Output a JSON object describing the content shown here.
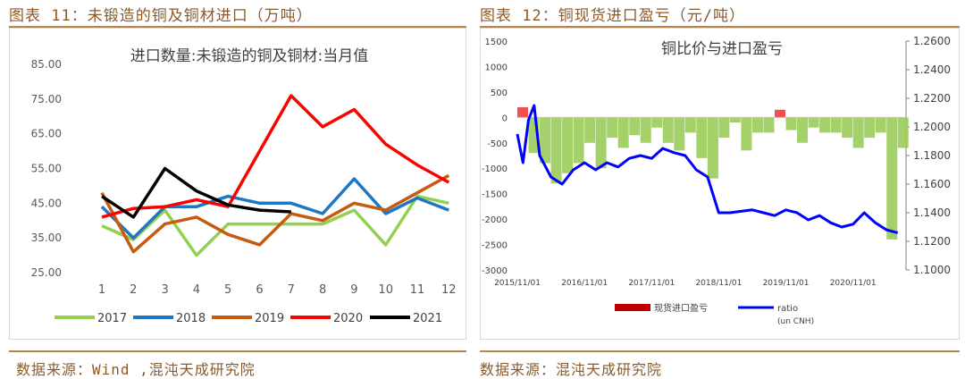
{
  "left_figure": {
    "caption": "图表 11：未锻造的铜及铜材进口（万吨）",
    "source": "数据来源：Wind ,混沌天成研究院"
  },
  "right_figure": {
    "caption": "图表 12：铜现货进口盈亏（元/吨）",
    "source": "数据来源：混沌天成研究院"
  },
  "colors": {
    "caption": "#8a5a2b",
    "rule": "#b8864b",
    "profit": "#ee3d3d",
    "loss": "#9bcc5a",
    "ratio": "#0000ff",
    "legend_profit": "#c00000"
  },
  "chart_data": [
    {
      "type": "line",
      "title": "进口数量:未锻造的铜及铜材:当月值",
      "xlabel": "",
      "ylabel": "",
      "categories": [
        "1",
        "2",
        "3",
        "4",
        "5",
        "6",
        "7",
        "8",
        "9",
        "10",
        "11",
        "12"
      ],
      "y_ticks": [
        "25.00",
        "35.00",
        "45.00",
        "55.00",
        "65.00",
        "75.00",
        "85.00"
      ],
      "ylim": [
        25,
        85
      ],
      "grid": false,
      "legend_position": "bottom",
      "series": [
        {
          "name": "2017",
          "color": "#92d050",
          "values": [
            38.5,
            34.5,
            43,
            30,
            39,
            39,
            39,
            39,
            43,
            33,
            47,
            45
          ]
        },
        {
          "name": "2018",
          "color": "#1f77c4",
          "values": [
            44,
            35,
            44,
            44,
            47,
            45,
            45,
            42,
            52,
            42,
            46.5,
            43
          ]
        },
        {
          "name": "2019",
          "color": "#c55a11",
          "values": [
            48,
            31,
            39,
            41,
            36,
            33,
            42,
            40,
            45,
            43,
            48,
            53
          ]
        },
        {
          "name": "2020",
          "color": "#ff0000",
          "values": [
            41,
            43.5,
            44,
            46,
            44,
            60,
            76,
            67,
            72,
            62,
            56,
            51
          ]
        },
        {
          "name": "2021",
          "color": "#000000",
          "values": [
            47,
            41,
            55,
            48.5,
            44.5,
            43,
            42.5,
            null,
            null,
            null,
            null,
            null
          ]
        }
      ]
    },
    {
      "type": "bar",
      "title": "铜比价与进口盈亏",
      "x_ticks": [
        "2015/11/01",
        "2016/11/01",
        "2017/11/01",
        "2018/11/01",
        "2019/11/01",
        "2020/11/01"
      ],
      "ylim": [
        -3000,
        1500
      ],
      "y_ticks": [
        "-3000",
        "-2500",
        "-2000",
        "-1500",
        "-1000",
        "-500",
        "0",
        "500",
        "1000",
        "1500"
      ],
      "y2lim": [
        1.1,
        1.26
      ],
      "y2_ticks": [
        "1.1000",
        "1.1200",
        "1.1400",
        "1.1600",
        "1.1800",
        "1.2000",
        "1.2200",
        "1.2400",
        "1.2600"
      ],
      "grid": false,
      "legend_position": "bottom",
      "series": [
        {
          "name": "现货进口盈亏",
          "type": "bar",
          "x": [
            "2015/11",
            "2016/01",
            "2016/03",
            "2016/05",
            "2016/07",
            "2016/09",
            "2016/11",
            "2017/01",
            "2017/03",
            "2017/05",
            "2017/07",
            "2017/09",
            "2017/11",
            "2018/01",
            "2018/03",
            "2018/05",
            "2018/07",
            "2018/09",
            "2018/11",
            "2019/01",
            "2019/03",
            "2019/05",
            "2019/07",
            "2019/09",
            "2019/11",
            "2020/01",
            "2020/03",
            "2020/05",
            "2020/07",
            "2020/09",
            "2020/11",
            "2021/01",
            "2021/03",
            "2021/05",
            "2021/07"
          ],
          "values": [
            200,
            -700,
            -900,
            -1300,
            -1100,
            -900,
            -500,
            -1000,
            -400,
            -600,
            -350,
            -500,
            -200,
            -500,
            -650,
            -300,
            -800,
            -1200,
            -400,
            -100,
            -650,
            -300,
            -300,
            150,
            -250,
            -500,
            -200,
            -300,
            -300,
            -400,
            -600,
            -400,
            -300,
            -2400,
            -600
          ]
        },
        {
          "name": "ratio",
          "name_note": "(un CNH)",
          "type": "line",
          "axis": "right",
          "x": [
            "2015/11",
            "2015/12",
            "2016/01",
            "2016/02",
            "2016/03",
            "2016/05",
            "2016/07",
            "2016/09",
            "2016/11",
            "2017/01",
            "2017/03",
            "2017/05",
            "2017/07",
            "2017/09",
            "2017/11",
            "2018/01",
            "2018/03",
            "2018/05",
            "2018/07",
            "2018/09",
            "2018/11",
            "2019/01",
            "2019/03",
            "2019/05",
            "2019/07",
            "2019/09",
            "2019/11",
            "2020/01",
            "2020/03",
            "2020/05",
            "2020/07",
            "2020/09",
            "2020/11",
            "2021/01",
            "2021/03",
            "2021/05",
            "2021/07"
          ],
          "values": [
            1.195,
            1.175,
            1.205,
            1.215,
            1.18,
            1.165,
            1.16,
            1.17,
            1.175,
            1.17,
            1.175,
            1.172,
            1.178,
            1.18,
            1.178,
            1.185,
            1.182,
            1.18,
            1.17,
            1.165,
            1.14,
            1.14,
            1.141,
            1.142,
            1.14,
            1.138,
            1.142,
            1.14,
            1.135,
            1.138,
            1.133,
            1.13,
            1.132,
            1.14,
            1.133,
            1.128,
            1.126
          ]
        }
      ]
    }
  ]
}
